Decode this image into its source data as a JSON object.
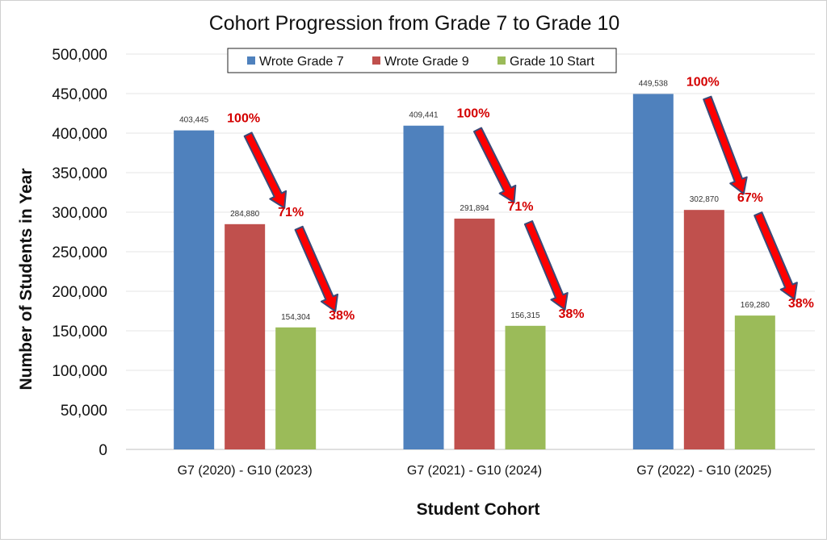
{
  "chart_data": {
    "type": "bar",
    "title": "Cohort Progression from Grade 7 to Grade 10",
    "xlabel": "Student Cohort",
    "ylabel": "Number of Students in Year",
    "ylim": [
      0,
      500000
    ],
    "yticks": [
      0,
      50000,
      100000,
      150000,
      200000,
      250000,
      300000,
      350000,
      400000,
      450000,
      500000
    ],
    "ytick_labels": [
      "0",
      "50,000",
      "100,000",
      "150,000",
      "200,000",
      "250,000",
      "300,000",
      "350,000",
      "400,000",
      "450,000",
      "500,000"
    ],
    "grid": true,
    "legend_position": "top",
    "categories": [
      "G7 (2020) - G10 (2023)",
      "G7 (2021) - G10 (2024)",
      "G7 (2022) - G10 (2025)"
    ],
    "series": [
      {
        "name": "Wrote Grade 7",
        "color": "#4f81bd",
        "values": [
          403445,
          409441,
          449538
        ],
        "labels": [
          "403,445",
          "409,441",
          "449,538"
        ],
        "percent_labels": [
          "100%",
          "100%",
          "100%"
        ]
      },
      {
        "name": "Wrote Grade 9",
        "color": "#c0504d",
        "values": [
          284880,
          291894,
          302870
        ],
        "labels": [
          "284,880",
          "291,894",
          "302,870"
        ],
        "percent_labels": [
          "71%",
          "71%",
          "67%"
        ]
      },
      {
        "name": "Grade 10 Start",
        "color": "#9bbb59",
        "values": [
          154304,
          156315,
          169280
        ],
        "labels": [
          "154,304",
          "156,315",
          "169,280"
        ],
        "percent_labels": [
          "38%",
          "38%",
          "38%"
        ]
      }
    ],
    "annotations": {
      "arrow_color": "#ff0000",
      "arrow_outline": "#3a4a78",
      "percent_color": "#d40000"
    }
  }
}
